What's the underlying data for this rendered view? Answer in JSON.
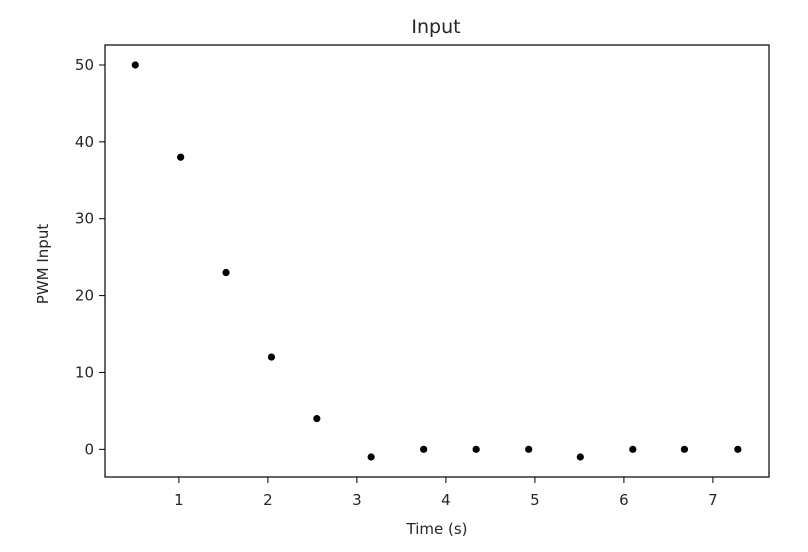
{
  "chart_data": {
    "type": "scatter",
    "title": "Input",
    "xlabel": "Time (s)",
    "ylabel": "PWM Input",
    "xlim": [
      0.17,
      7.63
    ],
    "ylim": [
      -3.6,
      52.6
    ],
    "xticks": [
      1,
      2,
      3,
      4,
      5,
      6,
      7
    ],
    "yticks": [
      0,
      10,
      20,
      30,
      40,
      50
    ],
    "x": [
      0.51,
      1.02,
      1.53,
      2.04,
      2.55,
      3.16,
      3.75,
      4.34,
      4.93,
      5.51,
      6.1,
      6.68,
      7.28
    ],
    "y": [
      50,
      38,
      23,
      12,
      4,
      -1,
      0,
      0,
      0,
      -1,
      0,
      0,
      0
    ],
    "marker_color": "#000000",
    "grid": false,
    "legend": "none"
  }
}
